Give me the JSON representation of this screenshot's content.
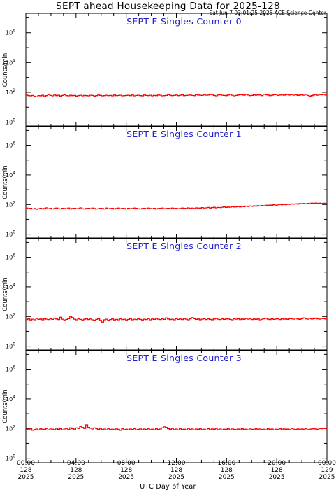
{
  "title": "SEPT ahead Housekeeping Data for 2025-128",
  "timestamp": "Sat Jun  7 03:01:25 2025 ACE Science Center",
  "xaxis_title": "UTC Day of Year",
  "colors": {
    "series": "#ff0000",
    "panel_title": "#2020c8",
    "frame": "#000000"
  },
  "chart_data": [
    {
      "type": "line",
      "title": "SEPT E Singles Counter 0",
      "ylabel": "Counts/min",
      "yscale": "log",
      "ylim": [
        0.5,
        20000000
      ],
      "yticks": [
        {
          "base": "10",
          "exp": "0"
        },
        {
          "base": "10",
          "exp": "2"
        },
        {
          "base": "10",
          "exp": "4"
        },
        {
          "base": "10",
          "exp": "6"
        }
      ],
      "xlim": [
        "2025-128 00:00",
        "2025-129 00:00"
      ],
      "series": [
        {
          "color": "#ff0000",
          "values": [
            65,
            60,
            58,
            62,
            55,
            50,
            60,
            58,
            64,
            52,
            60,
            70,
            62,
            58,
            66,
            60,
            64,
            56,
            62,
            68,
            60,
            58,
            64,
            60,
            62,
            56,
            60,
            64,
            58,
            62,
            60,
            58,
            64,
            62,
            56,
            60,
            66,
            62,
            58,
            60,
            64,
            60,
            62,
            58,
            66,
            60,
            62,
            64,
            58,
            60,
            62,
            64,
            60,
            66,
            58,
            62,
            64,
            60,
            58,
            66,
            62,
            60,
            64,
            58,
            62,
            60,
            66,
            64,
            58,
            60,
            62,
            70,
            64,
            60,
            62,
            66,
            60,
            64,
            68,
            60,
            62,
            64,
            66,
            62,
            60,
            70,
            66,
            64,
            62,
            68,
            64,
            66,
            70,
            72,
            62,
            58,
            66,
            68,
            64,
            62,
            60,
            66,
            72,
            64,
            58,
            62,
            66,
            70,
            68,
            64,
            72,
            66,
            60,
            62,
            68,
            64,
            70,
            66,
            60,
            74,
            68,
            66,
            60,
            64,
            68,
            70,
            62,
            66,
            72,
            64,
            68,
            74,
            66,
            70,
            64,
            68,
            62,
            66,
            70,
            64,
            72,
            62,
            56,
            60,
            66,
            72,
            64,
            70,
            68,
            72,
            66
          ]
        }
      ]
    },
    {
      "type": "line",
      "title": "SEPT E Singles Counter 1",
      "ylabel": "Counts/min",
      "yscale": "log",
      "ylim": [
        0.5,
        20000000
      ],
      "yticks": [
        {
          "base": "10",
          "exp": "0"
        },
        {
          "base": "10",
          "exp": "2"
        },
        {
          "base": "10",
          "exp": "4"
        },
        {
          "base": "10",
          "exp": "6"
        }
      ],
      "xlim": [
        "2025-128 00:00",
        "2025-129 00:00"
      ],
      "series": [
        {
          "color": "#ff0000",
          "values": [
            58,
            52,
            56,
            50,
            54,
            48,
            52,
            56,
            50,
            54,
            60,
            52,
            56,
            50,
            54,
            58,
            52,
            50,
            56,
            54,
            52,
            58,
            50,
            54,
            56,
            52,
            54,
            60,
            52,
            50,
            54,
            56,
            52,
            58,
            54,
            50,
            52,
            56,
            54,
            50,
            58,
            52,
            54,
            56,
            50,
            54,
            58,
            52,
            56,
            54,
            50,
            56,
            52,
            54,
            58,
            56,
            52,
            50,
            54,
            56,
            52,
            58,
            54,
            52,
            56,
            50,
            54,
            56,
            58,
            52,
            54,
            56,
            52,
            58,
            54,
            56,
            52,
            54,
            58,
            56,
            54,
            60,
            56,
            58,
            54,
            60,
            58,
            56,
            62,
            58,
            60,
            64,
            58,
            62,
            66,
            60,
            64,
            62,
            66,
            70,
            64,
            68,
            66,
            72,
            68,
            70,
            74,
            70,
            76,
            72,
            78,
            74,
            80,
            76,
            82,
            78,
            84,
            80,
            86,
            82,
            90,
            86,
            92,
            88,
            96,
            90,
            94,
            100,
            96,
            104,
            98,
            106,
            102,
            110,
            104,
            112,
            106,
            116,
            110,
            118,
            112,
            120,
            116,
            124,
            118,
            126,
            120,
            124,
            118,
            122,
            116
          ]
        }
      ]
    },
    {
      "type": "line",
      "title": "SEPT E Singles Counter 2",
      "ylabel": "Counts/min",
      "yscale": "log",
      "ylim": [
        0.5,
        20000000
      ],
      "yticks": [
        {
          "base": "10",
          "exp": "0"
        },
        {
          "base": "10",
          "exp": "2"
        },
        {
          "base": "10",
          "exp": "4"
        },
        {
          "base": "10",
          "exp": "6"
        }
      ],
      "xlim": [
        "2025-128 00:00",
        "2025-129 00:00"
      ],
      "series": [
        {
          "color": "#ff0000",
          "values": [
            62,
            70,
            58,
            66,
            60,
            74,
            64,
            68,
            60,
            72,
            66,
            62,
            70,
            64,
            76,
            68,
            62,
            90,
            66,
            58,
            64,
            72,
            100,
            84,
            66,
            60,
            70,
            64,
            58,
            66,
            72,
            62,
            68,
            60,
            56,
            64,
            70,
            54,
            42,
            60,
            66,
            56,
            62,
            68,
            58,
            64,
            60,
            70,
            62,
            66,
            58,
            64,
            72,
            60,
            66,
            62,
            70,
            64,
            58,
            66,
            62,
            72,
            60,
            68,
            64,
            76,
            66,
            62,
            70,
            64,
            80,
            68,
            62,
            66,
            60,
            72,
            64,
            68,
            62,
            74,
            66,
            60,
            70,
            84,
            72,
            64,
            68,
            60,
            66,
            72,
            62,
            70,
            64,
            60,
            68,
            74,
            66,
            62,
            70,
            64,
            68,
            76,
            64,
            60,
            70,
            66,
            72,
            62,
            68,
            64,
            74,
            66,
            70,
            62,
            68,
            64,
            72,
            60,
            66,
            70,
            76,
            66,
            62,
            72,
            64,
            68,
            70,
            62,
            74,
            66,
            68,
            64,
            72,
            70,
            66,
            76,
            68,
            64,
            72,
            80,
            70,
            66,
            74,
            68,
            72,
            78,
            70,
            66,
            74,
            72,
            68
          ]
        }
      ]
    },
    {
      "type": "line",
      "title": "SEPT E Singles Counter 3",
      "ylabel": "Counts/min",
      "yscale": "log",
      "ylim": [
        0.5,
        20000000
      ],
      "yticks": [
        {
          "base": "10",
          "exp": "0"
        },
        {
          "base": "10",
          "exp": "2"
        },
        {
          "base": "10",
          "exp": "4"
        },
        {
          "base": "10",
          "exp": "6"
        }
      ],
      "xlim": [
        "2025-128 00:00",
        "2025-129 00:00"
      ],
      "series": [
        {
          "color": "#ff0000",
          "values": [
            90,
            80,
            96,
            76,
            86,
            92,
            80,
            98,
            84,
            88,
            100,
            82,
            94,
            90,
            84,
            104,
            88,
            96,
            80,
            92,
            100,
            86,
            112,
            96,
            90,
            110,
            100,
            140,
            120,
            100,
            176,
            120,
            104,
            92,
            110,
            96,
            88,
            100,
            84,
            92,
            80,
            96,
            86,
            90,
            82,
            94,
            88,
            76,
            96,
            84,
            90,
            80,
            92,
            86,
            98,
            82,
            88,
            94,
            80,
            92,
            86,
            96,
            84,
            90,
            80,
            98,
            86,
            92,
            112,
            130,
            120,
            96,
            88,
            100,
            84,
            92,
            80,
            96,
            86,
            90,
            82,
            100,
            88,
            94,
            80,
            92,
            86,
            98,
            84,
            90,
            80,
            96,
            82,
            94,
            86,
            100,
            84,
            92,
            80,
            90,
            86,
            98,
            82,
            94,
            88,
            84,
            92,
            80,
            96,
            86,
            90,
            82,
            94,
            88,
            80,
            96,
            84,
            92,
            86,
            90,
            82,
            98,
            84,
            92,
            80,
            90,
            86,
            96,
            82,
            94,
            88,
            92,
            84,
            100,
            90,
            86,
            94,
            82,
            92,
            88,
            96,
            84,
            90,
            94,
            98,
            92,
            88,
            100,
            96,
            104,
            98
          ]
        }
      ]
    }
  ],
  "xticks": [
    {
      "time": "00:00",
      "day": "128",
      "year": "2025"
    },
    {
      "time": "04:00",
      "day": "128",
      "year": "2025"
    },
    {
      "time": "08:00",
      "day": "128",
      "year": "2025"
    },
    {
      "time": "12:00",
      "day": "128",
      "year": "2025"
    },
    {
      "time": "16:00",
      "day": "128",
      "year": "2025"
    },
    {
      "time": "20:00",
      "day": "128",
      "year": "2025"
    },
    {
      "time": "00:00",
      "day": "129",
      "year": "2025"
    }
  ]
}
